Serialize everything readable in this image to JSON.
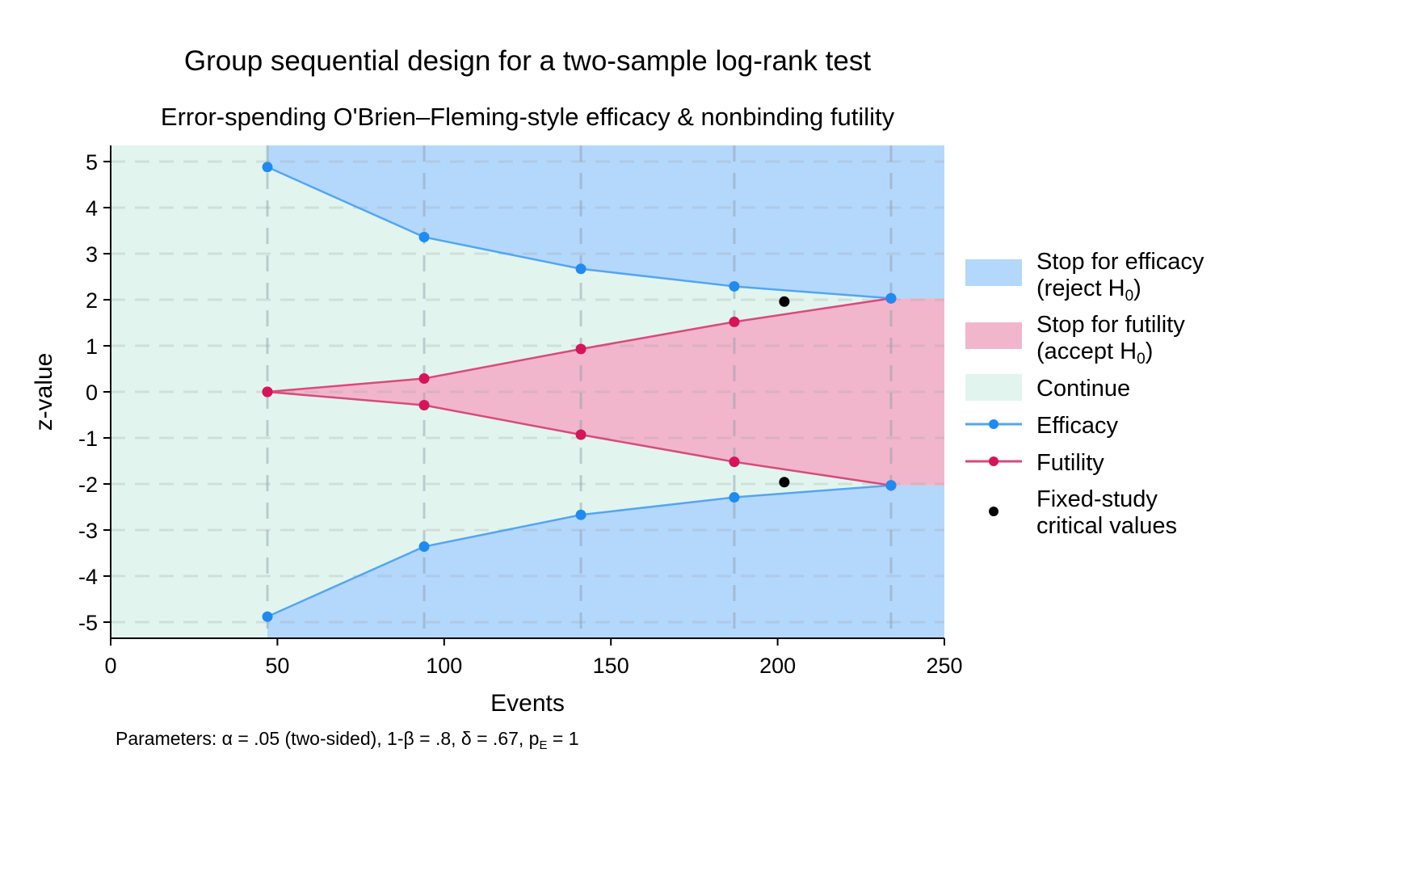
{
  "chart_data": {
    "type": "line",
    "title": "Group sequential design for a two-sample log-rank test",
    "subtitle": "Error-spending O'Brien–Fleming-style efficacy & nonbinding futility",
    "xlabel": "Events",
    "ylabel": "z-value",
    "xlim": [
      0,
      250
    ],
    "ylim": [
      -5.35,
      5.35
    ],
    "xticks": [
      0,
      50,
      100,
      150,
      200,
      250
    ],
    "yticks": [
      5,
      4,
      3,
      2,
      1,
      0,
      -1,
      -2,
      -3,
      -4,
      -5
    ],
    "grid": true,
    "legend_position": "right",
    "x": [
      47,
      94,
      141,
      187,
      234
    ],
    "series": [
      {
        "name": "Efficacy upper",
        "legend": "Efficacy",
        "values": [
          4.88,
          3.36,
          2.67,
          2.29,
          2.03
        ]
      },
      {
        "name": "Efficacy lower",
        "legend": "Efficacy",
        "values": [
          -4.88,
          -3.36,
          -2.67,
          -2.29,
          -2.03
        ]
      },
      {
        "name": "Futility upper",
        "legend": "Futility",
        "values": [
          0,
          0.29,
          0.93,
          1.52,
          2.03
        ]
      },
      {
        "name": "Futility lower",
        "legend": "Futility",
        "values": [
          0,
          -0.29,
          -0.93,
          -1.52,
          -2.03
        ]
      }
    ],
    "fixed_study": {
      "x": 202,
      "values": [
        1.96,
        -1.96
      ]
    },
    "legend": {
      "efficacy_region": [
        "Stop for efficacy",
        "(reject H",
        "0",
        ")"
      ],
      "futility_region": [
        "Stop for futility",
        "(accept H",
        "0",
        ")"
      ],
      "continue_region": "Continue",
      "efficacy_line": "Efficacy",
      "futility_line": "Futility",
      "fixed_points": [
        "Fixed-study",
        "critical values"
      ]
    },
    "note": {
      "prefix": "Parameters: α = .05 (two-sided), 1-β = .8, δ = .67, p",
      "sub": "E",
      "suffix": " = 1"
    },
    "colors": {
      "continue": "#e1f5ee",
      "efficacy_region": "#b4d7fc",
      "futility_region": "#f1b6cc",
      "efficacy_line": "#53a5f4",
      "efficacy_point": "#1f8bf1",
      "futility_line": "#d94a7b",
      "futility_point": "#d6145a",
      "fixed_point": "#000000"
    }
  }
}
